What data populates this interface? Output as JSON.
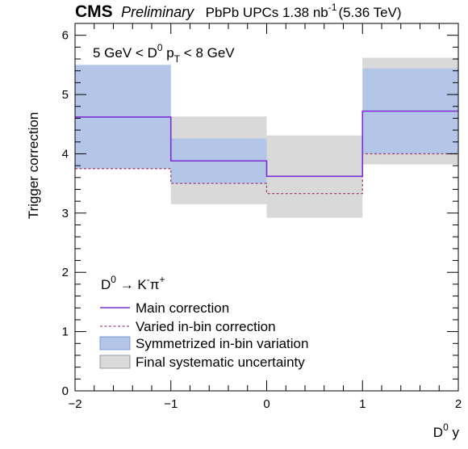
{
  "header": {
    "experiment": "CMS",
    "status": "Preliminary",
    "lumi": "PbPb UPCs 1.38 nb",
    "lumi_sup": "-1",
    "energy": "(5.36 TeV)"
  },
  "annotation": {
    "range_left": "5 GeV < D",
    "range_sup": "0",
    "range_mid": " p",
    "range_sub": "T",
    "range_right": " < 8 GeV"
  },
  "chart_data": {
    "type": "histogram",
    "xlabel": "D",
    "xlabel_sup": "0",
    "xlabel_suffix": " y",
    "ylabel": "Trigger correction",
    "xlim": [
      -2,
      2
    ],
    "ylim": [
      0,
      6.2
    ],
    "x_ticks": [
      -2,
      -1,
      0,
      1,
      2
    ],
    "x_tick_labels": [
      "−2",
      "−1",
      "0",
      "1",
      "2"
    ],
    "y_ticks": [
      0,
      1,
      2,
      3,
      4,
      5,
      6
    ],
    "y_tick_labels": [
      "0",
      "1",
      "2",
      "3",
      "4",
      "5",
      "6"
    ],
    "bin_edges": [
      -2,
      -1,
      0,
      1,
      2
    ],
    "series": [
      {
        "name": "Main correction",
        "style": "line",
        "color": "#7b2fd6",
        "values": [
          4.62,
          3.88,
          3.62,
          4.72
        ]
      },
      {
        "name": "Varied in-bin correction",
        "style": "dashed",
        "color": "#a0467a",
        "values": [
          3.75,
          3.5,
          3.33,
          4.0
        ]
      },
      {
        "name": "Symmetrized in-bin variation",
        "style": "band",
        "color": "#b3c6e8",
        "lower": [
          3.75,
          3.5,
          3.91,
          4.0
        ],
        "upper": [
          5.5,
          4.26,
          3.91,
          5.44
        ]
      },
      {
        "name": "Final systematic uncertainty",
        "style": "band",
        "color": "#d9d9d9",
        "lower": [
          3.8,
          3.15,
          2.92,
          3.82
        ],
        "upper": [
          5.5,
          4.63,
          4.31,
          5.62
        ]
      }
    ],
    "legend": {
      "title_main": "D",
      "title_sup": "0",
      "title_arrow": " → K",
      "title_sup2": "-",
      "title_pi": "π",
      "title_sup3": "+",
      "placement": "bottom-left"
    }
  }
}
